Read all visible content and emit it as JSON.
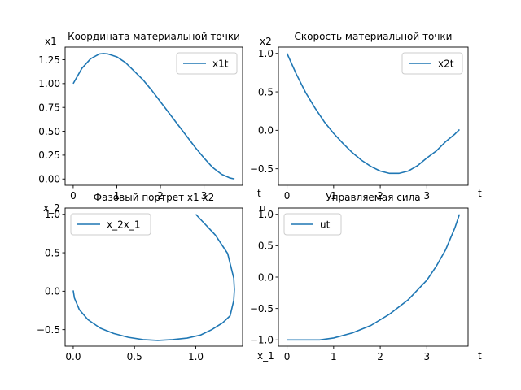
{
  "chart_data": [
    {
      "type": "line",
      "title": "Координата материальной точки",
      "xlabel": "t",
      "ylabel": "x1",
      "xlim": [
        -0.185,
        3.885
      ],
      "ylim": [
        -0.066,
        1.382
      ],
      "xticks": [
        0,
        1,
        2,
        3
      ],
      "yticks": [
        0.0,
        0.25,
        0.5,
        0.75,
        1.0,
        1.25
      ],
      "xtick_labels": [
        "0",
        "1",
        "2",
        "3"
      ],
      "ytick_labels": [
        "0.00",
        "0.25",
        "0.50",
        "0.75",
        "1.00",
        "1.25"
      ],
      "legend": "top-right",
      "grid": false,
      "series": [
        {
          "name": "x1t",
          "color": "#1f77b4",
          "x": [
            0,
            0.2,
            0.4,
            0.6,
            0.7,
            0.8,
            1.0,
            1.2,
            1.4,
            1.6,
            1.8,
            2.0,
            2.2,
            2.4,
            2.6,
            2.8,
            3.0,
            3.2,
            3.4,
            3.6,
            3.7
          ],
          "y": [
            1.0,
            1.16,
            1.26,
            1.31,
            1.315,
            1.31,
            1.28,
            1.22,
            1.13,
            1.04,
            0.93,
            0.81,
            0.69,
            0.57,
            0.45,
            0.33,
            0.22,
            0.12,
            0.05,
            0.01,
            0.0
          ]
        }
      ]
    },
    {
      "type": "line",
      "title": "Скорость материальной точки",
      "xlabel": "t",
      "ylabel": "x2",
      "xlim": [
        -0.185,
        3.885
      ],
      "ylim": [
        -0.715,
        1.082
      ],
      "xticks": [
        0,
        1,
        2,
        3
      ],
      "yticks": [
        -0.5,
        0.0,
        0.5,
        1.0
      ],
      "xtick_labels": [
        "0",
        "1",
        "2",
        "3"
      ],
      "ytick_labels": [
        "−0.5",
        "0.0",
        "0.5",
        "1.0"
      ],
      "legend": "top-right",
      "grid": false,
      "series": [
        {
          "name": "x2t",
          "color": "#1f77b4",
          "x": [
            0,
            0.2,
            0.4,
            0.6,
            0.8,
            1.0,
            1.2,
            1.4,
            1.6,
            1.8,
            2.0,
            2.2,
            2.4,
            2.6,
            2.8,
            3.0,
            3.2,
            3.4,
            3.6,
            3.7
          ],
          "y": [
            1.0,
            0.73,
            0.49,
            0.29,
            0.11,
            -0.04,
            -0.17,
            -0.29,
            -0.39,
            -0.47,
            -0.53,
            -0.56,
            -0.56,
            -0.53,
            -0.46,
            -0.36,
            -0.27,
            -0.15,
            -0.05,
            0.01
          ]
        }
      ]
    },
    {
      "type": "line",
      "title": "Фазовый портрет x1 x2",
      "xlabel": "x_1",
      "ylabel": "x_2",
      "xlim": [
        -0.066,
        1.382
      ],
      "ylim": [
        -0.715,
        1.082
      ],
      "xticks": [
        0.0,
        0.5,
        1.0
      ],
      "yticks": [
        -0.5,
        0.0,
        0.5,
        1.0
      ],
      "xtick_labels": [
        "0.0",
        "0.5",
        "1.0"
      ],
      "ytick_labels": [
        "−0.5",
        "0.0",
        "0.5",
        "1.0"
      ],
      "legend": "top-left",
      "grid": false,
      "series": [
        {
          "name": "x_2x_1",
          "color": "#1f77b4",
          "x": [
            1.0,
            1.16,
            1.26,
            1.31,
            1.315,
            1.31,
            1.28,
            1.22,
            1.13,
            1.04,
            0.93,
            0.81,
            0.69,
            0.57,
            0.45,
            0.33,
            0.22,
            0.12,
            0.05,
            0.01,
            0.0
          ],
          "y": [
            1.0,
            0.73,
            0.49,
            0.17,
            0.02,
            -0.12,
            -0.32,
            -0.41,
            -0.5,
            -0.57,
            -0.61,
            -0.63,
            -0.64,
            -0.63,
            -0.6,
            -0.55,
            -0.48,
            -0.37,
            -0.24,
            -0.09,
            0.01
          ]
        }
      ]
    },
    {
      "type": "line",
      "title": "Управляемая сила",
      "xlabel": "t",
      "ylabel": "u",
      "xlim": [
        -0.185,
        3.885
      ],
      "ylim": [
        -1.1,
        1.1
      ],
      "xticks": [
        0,
        1,
        2,
        3
      ],
      "yticks": [
        -1.0,
        -0.5,
        0.0,
        0.5,
        1.0
      ],
      "xtick_labels": [
        "0",
        "1",
        "2",
        "3"
      ],
      "ytick_labels": [
        "−1.0",
        "−0.5",
        "0.0",
        "0.5",
        "1.0"
      ],
      "legend": "top-left",
      "grid": false,
      "series": [
        {
          "name": "ut",
          "color": "#1f77b4",
          "x": [
            0,
            0.35,
            0.7,
            1.0,
            1.4,
            1.8,
            2.2,
            2.6,
            3.0,
            3.2,
            3.4,
            3.6,
            3.7
          ],
          "y": [
            -1.0,
            -1.0,
            -1.0,
            -0.97,
            -0.89,
            -0.77,
            -0.59,
            -0.36,
            -0.05,
            0.17,
            0.43,
            0.78,
            1.0
          ]
        }
      ]
    }
  ]
}
